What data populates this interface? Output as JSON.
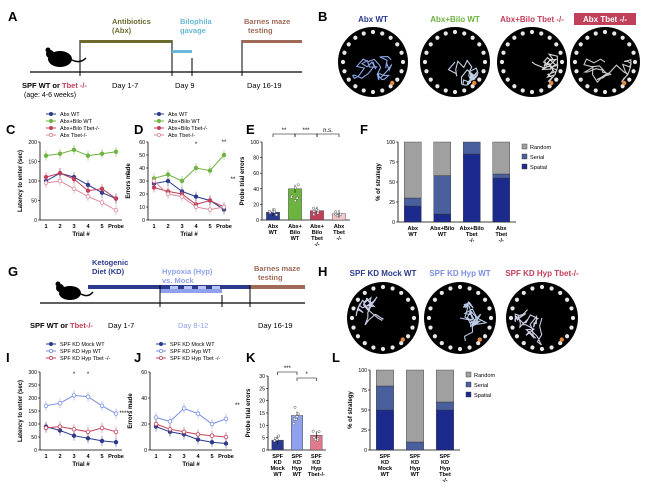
{
  "panels": {
    "A": {
      "letter": "A",
      "phase1": "Antibiotics",
      "phase1b": "(Abx)",
      "phase2": "Bilophila",
      "phase2b": "gavage",
      "phase3": "Barnes maze",
      "phase3b": "testing",
      "mouse_a": "SPF WT",
      "mouse_or": " or ",
      "mouse_b": "Tbet -/-",
      "age": "(age: 4-6 weeks)",
      "day1": "Day 1-7",
      "day2": "Day 9",
      "day3": "Day 16-19",
      "colors": {
        "phase1": "#6b6b2e",
        "phase2": "#69b8d8",
        "phase3": "#a06a58"
      }
    },
    "B": {
      "letter": "B",
      "labels": [
        "Abx WT",
        "Abx+Bilo WT",
        "Abx+Bilo Tbet -/-",
        "Abx Tbet -/-"
      ],
      "colors": [
        "#2a3a8c",
        "#6db33f",
        "#c0405a",
        "#ffffff"
      ]
    },
    "G": {
      "letter": "G",
      "phase1": "Ketogenic",
      "phase1b": "Diet (KD)",
      "phase2": "Hypoxia (Hyp)",
      "phase2b": "vs. Mock",
      "phase3": "Barnes maze",
      "phase3b": "testing",
      "mouse_a": "SPF WT",
      "mouse_or": " or ",
      "mouse_b": "Tbet-/-",
      "day1": "Day 1-7",
      "day2": "Day 8-12",
      "day3": "Day 16-19"
    },
    "H": {
      "letter": "H",
      "labels": [
        "SPF KD Mock WT",
        "SPF KD Hyp WT",
        "SPF KD Hyp Tbet-/-"
      ],
      "colors": [
        "#2a3a8c",
        "#7a8ee0",
        "#c0405a"
      ]
    }
  },
  "chart_data": [
    {
      "panel": "C",
      "type": "line",
      "x": [
        "1",
        "2",
        "3",
        "4",
        "5",
        "Probe"
      ],
      "xlabel": "Trial #",
      "ylabel": "Latency to enter (sec)",
      "ylim": [
        0,
        200
      ],
      "yticks": [
        0,
        50,
        100,
        150,
        200
      ],
      "legend": "top-left",
      "series": [
        {
          "name": "Abx WT",
          "color": "#2a3a8c",
          "filled": true,
          "values": [
            100,
            120,
            110,
            90,
            70,
            55
          ]
        },
        {
          "name": "Abx+Bilo WT",
          "color": "#6db33f",
          "filled": true,
          "values": [
            165,
            170,
            180,
            165,
            170,
            175
          ]
        },
        {
          "name": "Abx+Bilo Tbet-/-",
          "color": "#c0405a",
          "filled": true,
          "values": [
            110,
            120,
            105,
            75,
            80,
            55
          ]
        },
        {
          "name": "Abx Tbet-/-",
          "color": "#d98a9a",
          "filled": false,
          "values": [
            95,
            100,
            80,
            60,
            45,
            25
          ]
        }
      ],
      "annotation": "**"
    },
    {
      "panel": "D",
      "type": "line",
      "x": [
        "1",
        "2",
        "3",
        "4",
        "5",
        "Probe"
      ],
      "xlabel": "Trial #",
      "ylabel": "Errors made",
      "ylim": [
        0,
        60
      ],
      "yticks": [
        0,
        10,
        20,
        30,
        40,
        50,
        60
      ],
      "legend": "top-left",
      "series": [
        {
          "name": "Abx WT",
          "color": "#2a3a8c",
          "filled": true,
          "values": [
            28,
            30,
            22,
            18,
            15,
            8
          ]
        },
        {
          "name": "Abx+Bilo WT",
          "color": "#6db33f",
          "filled": true,
          "values": [
            32,
            35,
            30,
            40,
            38,
            50
          ]
        },
        {
          "name": "Abx+Bilo Tbet-/-",
          "color": "#c0405a",
          "filled": true,
          "values": [
            25,
            22,
            20,
            12,
            15,
            10
          ]
        },
        {
          "name": "Abx Tbet-/-",
          "color": "#d98a9a",
          "filled": false,
          "values": [
            30,
            20,
            18,
            10,
            8,
            10
          ]
        }
      ],
      "annotations": [
        "*",
        "**",
        "**"
      ]
    },
    {
      "panel": "E",
      "type": "bar",
      "categories": [
        "Abx WT",
        "Abx+ Bilo WT",
        "Abx+ Bilo Tbet -/-",
        "Abx Tbet -/-"
      ],
      "values": [
        10,
        40,
        12,
        8
      ],
      "colors": [
        "#2a3a8c",
        "#6db33f",
        "#c0405a",
        "#f3c9d0"
      ],
      "ylabel": "Probe trial errors",
      "ylim": [
        0,
        100
      ],
      "yticks": [
        0,
        20,
        40,
        60,
        80,
        100
      ],
      "annotations": [
        "**",
        "***",
        "n.s."
      ]
    },
    {
      "panel": "F",
      "type": "bar",
      "categories": [
        "Abx WT",
        "Abx+Bilo WT",
        "Abx+Bilo Tbet -/-",
        "Abx Tbet -/-"
      ],
      "ylabel": "% of strategy",
      "ylim": [
        0,
        100
      ],
      "yticks": [
        0,
        25,
        50,
        75,
        100
      ],
      "legend": "right",
      "series": [
        {
          "name": "Spatial",
          "color": "#1b2a8c",
          "values": [
            20,
            10,
            85,
            55
          ]
        },
        {
          "name": "Serial",
          "color": "#4a5f9e",
          "values": [
            10,
            48,
            15,
            5
          ]
        },
        {
          "name": "Random",
          "color": "#a0a0a0",
          "values": [
            70,
            42,
            0,
            40
          ]
        }
      ]
    },
    {
      "panel": "I",
      "type": "line",
      "x": [
        "1",
        "2",
        "3",
        "4",
        "5",
        "Probe"
      ],
      "xlabel": "Trial #",
      "ylabel": "Latency to enter (sec)",
      "ylim": [
        0,
        300
      ],
      "yticks": [
        0,
        50,
        100,
        150,
        200,
        250,
        300
      ],
      "legend": "top-left",
      "series": [
        {
          "name": "SPF KD Mock WT",
          "color": "#2a3a8c",
          "filled": true,
          "values": [
            90,
            75,
            55,
            45,
            35,
            30
          ]
        },
        {
          "name": "SPF KD Hyp WT",
          "color": "#7a8ee0",
          "filled": false,
          "values": [
            170,
            180,
            210,
            205,
            170,
            140
          ]
        },
        {
          "name": "SPF KD Hyp Tbet -/-",
          "color": "#c0405a",
          "filled": false,
          "values": [
            85,
            90,
            80,
            70,
            85,
            70
          ]
        }
      ],
      "annotations": [
        "*",
        "*",
        "****"
      ]
    },
    {
      "panel": "J",
      "type": "line",
      "x": [
        "1",
        "2",
        "3",
        "4",
        "5",
        "Probe"
      ],
      "xlabel": "Trial #",
      "ylabel": "Errors made",
      "ylim": [
        0,
        60
      ],
      "yticks": [
        0,
        20,
        40,
        60
      ],
      "legend": "top-left",
      "series": [
        {
          "name": "SPF KD Mock WT",
          "color": "#2a3a8c",
          "filled": true,
          "values": [
            18,
            14,
            12,
            8,
            6,
            5
          ]
        },
        {
          "name": "SPF KD Hyp WT",
          "color": "#7a8ee0",
          "filled": false,
          "values": [
            25,
            22,
            32,
            28,
            20,
            24
          ]
        },
        {
          "name": "SPF KD Hyp Tbet -/-",
          "color": "#c0405a",
          "filled": false,
          "values": [
            20,
            16,
            14,
            12,
            11,
            10
          ]
        }
      ],
      "annotation": "**"
    },
    {
      "panel": "K",
      "type": "bar",
      "categories": [
        "SPF KD Mock WT",
        "SPF KD Hyp WT",
        "SPF KD Hyp Tbet-/-"
      ],
      "values": [
        4,
        14,
        6
      ],
      "colors": [
        "#2a3a8c",
        "#8fa0ec",
        "#e07a8c"
      ],
      "ylabel": "Probe trial errors",
      "ylim": [
        0,
        30
      ],
      "yticks": [
        0,
        5,
        10,
        15,
        20,
        25,
        30
      ],
      "annotations": [
        "***",
        "*"
      ]
    },
    {
      "panel": "L",
      "type": "bar",
      "categories": [
        "SPF KD Mock WT",
        "SPF KD Hyp WT",
        "SPF KD Hyp Tbet -/-"
      ],
      "ylabel": "% of strategy",
      "ylim": [
        0,
        100
      ],
      "yticks": [
        0,
        25,
        50,
        75,
        100
      ],
      "legend": "right",
      "series": [
        {
          "name": "Spatial",
          "color": "#1b2a8c",
          "values": [
            50,
            0,
            50
          ]
        },
        {
          "name": "Serial",
          "color": "#4a5f9e",
          "values": [
            30,
            10,
            10
          ]
        },
        {
          "name": "Random",
          "color": "#a0a0a0",
          "values": [
            20,
            90,
            40
          ]
        }
      ]
    }
  ]
}
